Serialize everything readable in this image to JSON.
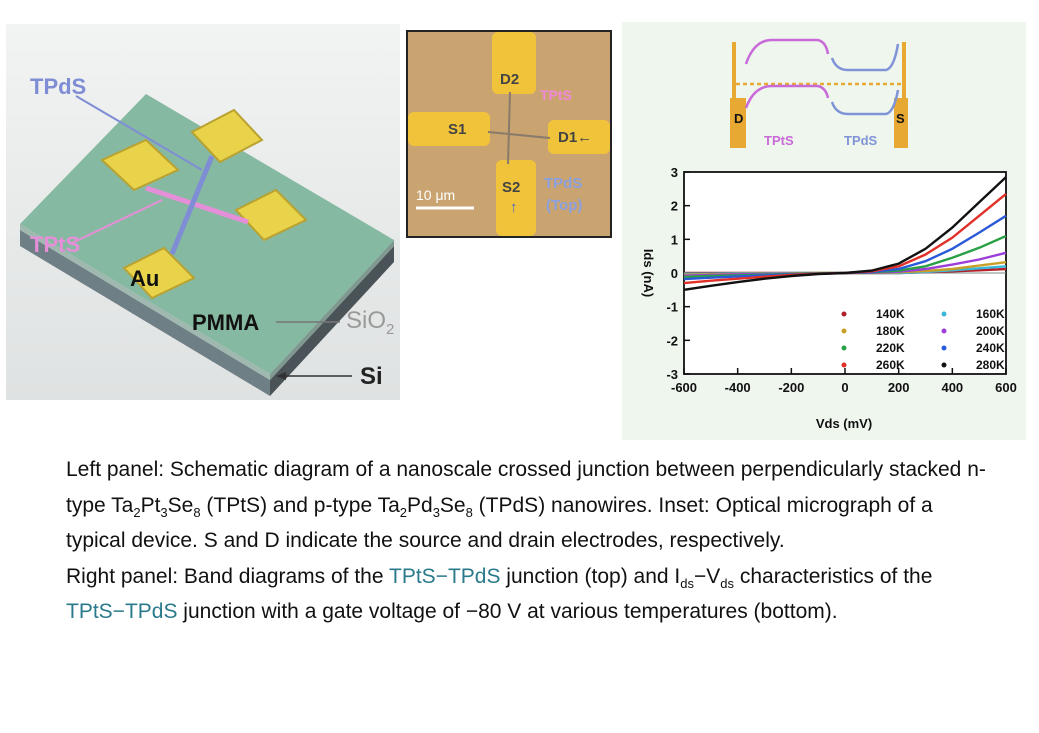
{
  "schematic": {
    "labels": {
      "tpds": "TPdS",
      "tpts": "TPtS",
      "au": "Au",
      "pmma": "PMMA",
      "sio2_main": "SiO",
      "sio2_sub": "2",
      "si": "Si"
    },
    "colors": {
      "substrate_top": "#7fb89f",
      "pad": "#e9d34a",
      "tpds_wire": "#7f8ed4",
      "tpts_wire": "#e58fd8"
    }
  },
  "inset": {
    "labels": {
      "d2": "D2",
      "s1": "S1",
      "d1": "D1←",
      "s2": "S2",
      "tpts": "TPtS",
      "tpds": "TPdS",
      "top": "(Top)",
      "up_arrow": "↑",
      "scale": "10 μm"
    }
  },
  "band_diagram": {
    "labels": {
      "d": "D",
      "s": "S",
      "tpts": "TPtS",
      "tpds": "TPdS"
    },
    "colors": {
      "tpts": "#c96ad9",
      "tpds": "#7f93d6",
      "electrode": "#e8a932"
    }
  },
  "chart_data": {
    "type": "line",
    "title": "",
    "xlabel": "Vds (mV)",
    "ylabel": "Ids (nA)",
    "xlim": [
      -600,
      600
    ],
    "ylim": [
      -3,
      3
    ],
    "xticks": [
      -600,
      -400,
      -200,
      0,
      200,
      400,
      600
    ],
    "yticks": [
      3,
      2,
      1,
      0,
      -1,
      -2,
      -3
    ],
    "legend_position": "bottom-right",
    "x": [
      -600,
      -500,
      -400,
      -300,
      -200,
      -100,
      0,
      100,
      200,
      300,
      400,
      500,
      600
    ],
    "series": [
      {
        "name": "140K",
        "color": "#b3202a",
        "values": [
          0.0,
          0.0,
          0.0,
          0.0,
          0.0,
          0.0,
          0.0,
          0.0,
          0.0,
          0.02,
          0.05,
          0.08,
          0.12
        ]
      },
      {
        "name": "160K",
        "color": "#38b8d8",
        "values": [
          -0.02,
          -0.02,
          -0.01,
          -0.01,
          0.0,
          0.0,
          0.0,
          0.0,
          0.0,
          0.03,
          0.08,
          0.14,
          0.2
        ]
      },
      {
        "name": "180K",
        "color": "#c8a028",
        "values": [
          -0.05,
          -0.04,
          -0.03,
          -0.02,
          -0.01,
          0.0,
          0.0,
          0.0,
          0.02,
          0.06,
          0.12,
          0.22,
          0.32
        ]
      },
      {
        "name": "200K",
        "color": "#9b3fd8",
        "values": [
          -0.08,
          -0.06,
          -0.04,
          -0.03,
          -0.02,
          -0.01,
          0.0,
          0.01,
          0.04,
          0.12,
          0.25,
          0.4,
          0.6
        ]
      },
      {
        "name": "220K",
        "color": "#2aa044",
        "values": [
          -0.12,
          -0.09,
          -0.07,
          -0.05,
          -0.03,
          -0.01,
          0.0,
          0.02,
          0.07,
          0.2,
          0.45,
          0.75,
          1.1
        ]
      },
      {
        "name": "240K",
        "color": "#2a5ad8",
        "values": [
          -0.18,
          -0.14,
          -0.1,
          -0.07,
          -0.04,
          -0.02,
          0.0,
          0.03,
          0.12,
          0.35,
          0.72,
          1.2,
          1.7
        ]
      },
      {
        "name": "260K",
        "color": "#e03028",
        "values": [
          -0.3,
          -0.23,
          -0.17,
          -0.11,
          -0.06,
          -0.02,
          0.0,
          0.05,
          0.2,
          0.55,
          1.05,
          1.7,
          2.35
        ]
      },
      {
        "name": "280K",
        "color": "#111111",
        "values": [
          -0.5,
          -0.38,
          -0.27,
          -0.17,
          -0.09,
          -0.03,
          0.0,
          0.07,
          0.28,
          0.72,
          1.35,
          2.1,
          2.85
        ]
      }
    ]
  },
  "caption": {
    "left_intro": "Left panel: Schematic diagram of a nanoscale crossed junction between perpendicularly stacked  n-type Ta",
    "sub_2a": "2",
    "pt": "Pt",
    "sub_3a": "3",
    "se_a": "Se",
    "sub_8a": "8",
    "tpts_p_type": " (TPtS) and p-type Ta",
    "sub_2b": "2",
    "pd": "Pd",
    "sub_3b": "3",
    "se_b": "Se",
    "sub_8b": "8",
    "left_rest": " (TPdS) nanowires. Inset: Optical micrograph of a typical device. S and D indicate the source and drain electrodes, respectively.",
    "right_intro": "Right panel: Band diagrams of the ",
    "junction_1": "TPtS−TPdS",
    "right_mid": " junction (top) and  I",
    "sub_ds1": "ds",
    "dash_v": "−V",
    "sub_ds2": "ds",
    "right_mid2": " characteristics of the ",
    "junction_2": "TPtS−TPdS",
    "right_end": " junction with a gate voltage of −80 V at various temperatures (bottom)."
  }
}
